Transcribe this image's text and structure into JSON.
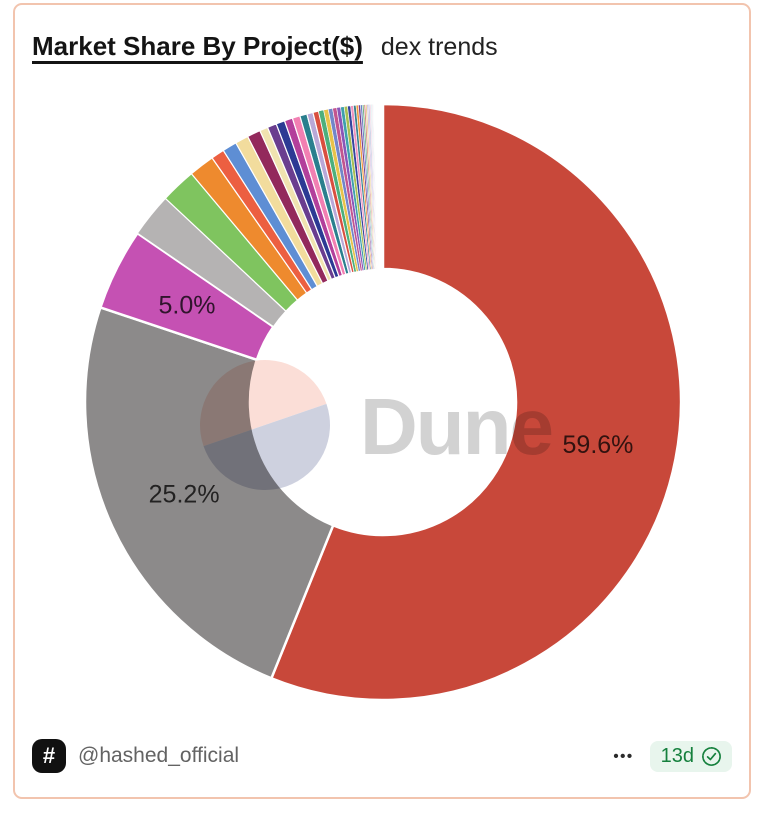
{
  "card": {
    "title": "Market Share By Project($)",
    "subtitle": "dex trends",
    "border_color": "#f2c4ae",
    "footer": {
      "logo_glyph": "#",
      "handle": "@hashed_official",
      "menu_label": "•••",
      "age_badge": "13d",
      "badge_bg": "#e8f5ed",
      "badge_fg": "#15803d"
    }
  },
  "watermark": {
    "text": "Dune",
    "logo_top_color": "#fbd9d0",
    "logo_bottom_color": "#c6c9da"
  },
  "chart_data": {
    "type": "pie",
    "donut": true,
    "title": "Market Share By Project($)",
    "subtitle": "dex trends",
    "legend": "none",
    "labeled_values_pct": [
      59.6,
      25.2,
      5.0
    ],
    "others_total_pct": 10.2,
    "label_text_color": "#3f3f3f",
    "slices": [
      {
        "label": "59.6%",
        "value": 59.6,
        "color": "#c8483a",
        "display_deg": 202.0
      },
      {
        "label": "25.2%",
        "value": 25.2,
        "color": "#8c8a8a",
        "display_deg": 86.5
      },
      {
        "label": "5.0%",
        "value": 5.0,
        "color": "#c551b3",
        "display_deg": 16.0
      },
      {
        "color": "#b5b3b3",
        "display_deg": 8.6
      },
      {
        "color": "#7fc45f",
        "display_deg": 6.9
      },
      {
        "color": "#ee8a2e",
        "display_deg": 5.0
      },
      {
        "color": "#ec5f41",
        "display_deg": 2.6
      },
      {
        "color": "#5e8ed4",
        "display_deg": 2.8
      },
      {
        "color": "#f2dc9d",
        "display_deg": 2.6
      },
      {
        "color": "#93295c",
        "display_deg": 2.6
      },
      {
        "color": "#f0e3b0",
        "display_deg": 1.6
      },
      {
        "color": "#6a3d8f",
        "display_deg": 1.8
      },
      {
        "color": "#2c3a94",
        "display_deg": 1.7
      },
      {
        "color": "#b33f9b",
        "display_deg": 1.6
      },
      {
        "color": "#f27fb2",
        "display_deg": 1.5
      },
      {
        "color": "#2a7f8e",
        "display_deg": 1.4
      },
      {
        "color": "#b9a8d8",
        "display_deg": 1.2
      },
      {
        "color": "#d94f3f",
        "display_deg": 1.1
      },
      {
        "color": "#4daf7c",
        "display_deg": 1.0
      },
      {
        "color": "#e8c24a",
        "display_deg": 0.9
      },
      {
        "color": "#7286c9",
        "display_deg": 0.85
      },
      {
        "color": "#c2558f",
        "display_deg": 0.8
      },
      {
        "color": "#8a56b8",
        "display_deg": 0.75
      },
      {
        "color": "#3fa0ad",
        "display_deg": 0.7
      },
      {
        "color": "#a8bf52",
        "display_deg": 0.65
      },
      {
        "color": "#35459e",
        "display_deg": 0.6
      },
      {
        "color": "#ef93be",
        "display_deg": 0.55
      },
      {
        "color": "#37808f",
        "display_deg": 0.5
      },
      {
        "color": "#f09a40",
        "display_deg": 0.45
      },
      {
        "color": "#7a3f92",
        "display_deg": 0.4
      },
      {
        "color": "#5c77c0",
        "display_deg": 0.36,
        "opacity": 0.9
      },
      {
        "color": "#4f9e62",
        "display_deg": 0.32,
        "opacity": 0.8
      },
      {
        "color": "#c44536",
        "display_deg": 0.3,
        "opacity": 0.7
      },
      {
        "color": "#d4a72c",
        "display_deg": 0.28,
        "opacity": 0.6
      },
      {
        "color": "#8a56b8",
        "display_deg": 0.26,
        "opacity": 0.5
      },
      {
        "color": "#2c3a94",
        "display_deg": 0.24,
        "opacity": 0.42
      },
      {
        "color": "#c2558f",
        "display_deg": 0.22,
        "opacity": 0.33
      },
      {
        "color": "#3fa0ad",
        "display_deg": 0.2,
        "opacity": 0.25
      },
      {
        "color": "#93295c",
        "display_deg": 0.18,
        "opacity": 0.18
      },
      {
        "color": "#5e8ed4",
        "display_deg": 0.16,
        "opacity": 0.12
      }
    ]
  }
}
